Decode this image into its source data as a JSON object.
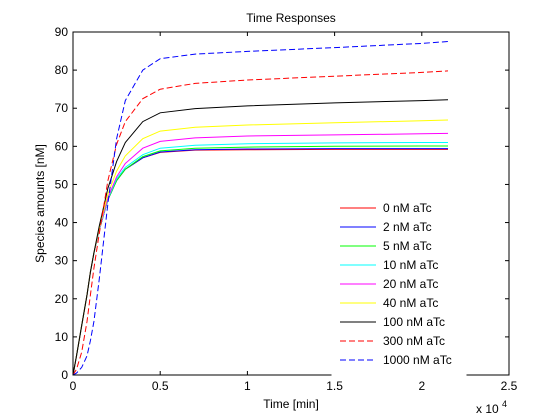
{
  "chart_data": {
    "type": "line",
    "title": "Time Responses",
    "xlabel": "Time [min]",
    "ylabel": "Species amounts [nM]",
    "x_exponent_label": "x 10",
    "x_exponent_power": "4",
    "xlim": [
      0,
      2.5
    ],
    "ylim": [
      0,
      90
    ],
    "x_ticks": [
      0,
      0.5,
      1,
      1.5,
      2,
      2.5
    ],
    "x_tick_labels": [
      "0",
      "0.5",
      "1",
      "1.5",
      "2",
      "2.5"
    ],
    "y_ticks": [
      0,
      10,
      20,
      30,
      40,
      50,
      60,
      70,
      80,
      90
    ],
    "y_tick_labels": [
      "0",
      "10",
      "20",
      "30",
      "40",
      "50",
      "60",
      "70",
      "80",
      "90"
    ],
    "grid": false,
    "legend_position": "bottom-right",
    "x": [
      0,
      0.02,
      0.05,
      0.08,
      0.1,
      0.12,
      0.15,
      0.2,
      0.25,
      0.3,
      0.4,
      0.5,
      0.7,
      1.0,
      1.5,
      2.0,
      2.15
    ],
    "series": [
      {
        "name": "0 nM aTc",
        "color": "#ff0000",
        "style": "solid",
        "values": [
          0,
          5,
          13,
          21,
          27,
          32,
          38,
          46,
          51,
          54,
          57,
          58.4,
          59,
          59.1,
          59.2,
          59.2,
          59.2
        ]
      },
      {
        "name": "2 nM aTc",
        "color": "#0000ff",
        "style": "solid",
        "values": [
          0,
          5,
          13,
          21,
          27,
          32,
          38,
          46,
          51,
          54,
          57,
          58.5,
          59.1,
          59.3,
          59.4,
          59.4,
          59.4
        ]
      },
      {
        "name": "5 nM aTc",
        "color": "#00ff00",
        "style": "solid",
        "values": [
          0,
          5,
          13,
          21,
          27,
          32,
          38,
          46,
          51,
          54,
          57.3,
          58.8,
          59.5,
          59.8,
          60,
          60.1,
          60.1
        ]
      },
      {
        "name": "10 nM aTc",
        "color": "#00ffff",
        "style": "solid",
        "values": [
          0,
          5,
          13,
          21,
          27,
          32,
          38,
          46.2,
          51.5,
          54.5,
          57.8,
          59.5,
          60.3,
          60.7,
          60.9,
          61,
          61
        ]
      },
      {
        "name": "20 nM aTc",
        "color": "#ff00ff",
        "style": "solid",
        "values": [
          0,
          5,
          13,
          21,
          27,
          32,
          38.2,
          46.5,
          52,
          55.5,
          59.5,
          61.3,
          62.2,
          62.7,
          63,
          63.3,
          63.4
        ]
      },
      {
        "name": "40 nM aTc",
        "color": "#ffff00",
        "style": "solid",
        "values": [
          0,
          5,
          13,
          21,
          27,
          32,
          38.5,
          47.5,
          53.5,
          57.5,
          62,
          64,
          65,
          65.6,
          66.2,
          66.7,
          66.9
        ]
      },
      {
        "name": "100 nM aTc",
        "color": "#000000",
        "style": "solid",
        "values": [
          0,
          5,
          13,
          21,
          27,
          32,
          39,
          49,
          56,
          61,
          66.5,
          68.8,
          69.9,
          70.6,
          71.4,
          72,
          72.2
        ]
      },
      {
        "name": "300 nM aTc",
        "color": "#ff0000",
        "style": "dashed",
        "values": [
          0,
          1.5,
          6,
          14,
          21,
          28,
          37,
          51,
          60.5,
          66.5,
          72.5,
          75,
          76.5,
          77.4,
          78.4,
          79.4,
          79.8
        ]
      },
      {
        "name": "1000 nM aTc",
        "color": "#0000ff",
        "style": "dashed",
        "values": [
          0,
          0.5,
          2,
          5,
          9,
          14,
          25,
          45,
          62,
          72,
          80,
          83,
          84.2,
          84.9,
          85.9,
          87,
          87.5
        ]
      }
    ]
  }
}
